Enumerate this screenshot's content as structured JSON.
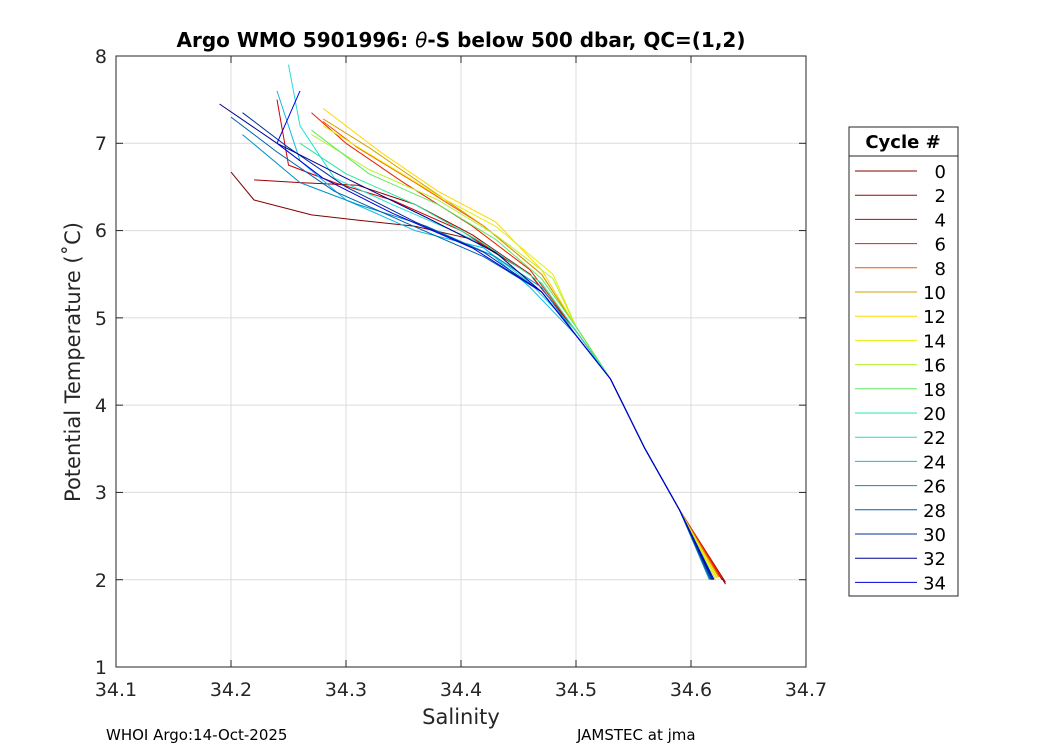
{
  "chart_data": {
    "type": "line",
    "title": {
      "prefix": "Argo WMO 5901996: ",
      "theta": "θ",
      "suffix": "-S below 500 dbar,  QC=(1,2)"
    },
    "xlabel": "Salinity",
    "ylabel": "Potential Temperature (˚C)",
    "xlim": [
      34.1,
      34.7
    ],
    "ylim": [
      1,
      8
    ],
    "xticks": [
      "34.1",
      "34.2",
      "34.3",
      "34.4",
      "34.5",
      "34.6",
      "34.7"
    ],
    "yticks": [
      "1",
      "2",
      "3",
      "4",
      "5",
      "6",
      "7",
      "8"
    ],
    "grid": true,
    "legend_title": "Cycle #",
    "legend_position": "outside-right",
    "legend_entries": [
      {
        "label": "0",
        "color": "#800000"
      },
      {
        "label": "2",
        "color": "#a00000"
      },
      {
        "label": "4",
        "color": "#cc0000"
      },
      {
        "label": "6",
        "color": "#e82000"
      },
      {
        "label": "8",
        "color": "#ff5000"
      },
      {
        "label": "10",
        "color": "#d4a000"
      },
      {
        "label": "12",
        "color": "#ffd800"
      },
      {
        "label": "14",
        "color": "#e8f000"
      },
      {
        "label": "16",
        "color": "#b8f030"
      },
      {
        "label": "18",
        "color": "#60e860"
      },
      {
        "label": "20",
        "color": "#28e8a0"
      },
      {
        "label": "22",
        "color": "#20e0d0"
      },
      {
        "label": "24",
        "color": "#10b8e8"
      },
      {
        "label": "26",
        "color": "#0090c8"
      },
      {
        "label": "28",
        "color": "#0060b0"
      },
      {
        "label": "30",
        "color": "#0030a0"
      },
      {
        "label": "32",
        "color": "#000090"
      },
      {
        "label": "34",
        "color": "#0000e0"
      }
    ],
    "series": [
      {
        "name": "0",
        "color": "#800000",
        "points": [
          [
            34.2,
            6.67
          ],
          [
            34.22,
            6.35
          ],
          [
            34.27,
            6.18
          ],
          [
            34.31,
            6.12
          ],
          [
            34.36,
            6.05
          ],
          [
            34.41,
            5.9
          ],
          [
            34.46,
            5.5
          ],
          [
            34.5,
            4.85
          ],
          [
            34.53,
            4.3
          ],
          [
            34.56,
            3.5
          ],
          [
            34.59,
            2.8
          ],
          [
            34.63,
            1.95
          ]
        ]
      },
      {
        "name": "2",
        "color": "#a00000",
        "points": [
          [
            34.22,
            6.58
          ],
          [
            34.26,
            6.55
          ],
          [
            34.31,
            6.52
          ],
          [
            34.36,
            6.3
          ],
          [
            34.41,
            5.95
          ],
          [
            34.46,
            5.5
          ],
          [
            34.5,
            4.85
          ],
          [
            34.53,
            4.3
          ],
          [
            34.56,
            3.5
          ],
          [
            34.59,
            2.8
          ],
          [
            34.63,
            1.97
          ]
        ]
      },
      {
        "name": "4",
        "color": "#cc0000",
        "points": [
          [
            34.24,
            7.5
          ],
          [
            34.25,
            6.75
          ],
          [
            34.29,
            6.55
          ],
          [
            34.34,
            6.35
          ],
          [
            34.4,
            6.0
          ],
          [
            34.46,
            5.5
          ],
          [
            34.5,
            4.85
          ],
          [
            34.53,
            4.3
          ],
          [
            34.56,
            3.5
          ],
          [
            34.59,
            2.8
          ],
          [
            34.627,
            2.0
          ]
        ]
      },
      {
        "name": "6",
        "color": "#e82000",
        "points": [
          [
            34.27,
            7.35
          ],
          [
            34.3,
            7.0
          ],
          [
            34.35,
            6.55
          ],
          [
            34.41,
            6.05
          ],
          [
            34.46,
            5.55
          ],
          [
            34.5,
            4.85
          ],
          [
            34.53,
            4.3
          ],
          [
            34.56,
            3.5
          ],
          [
            34.59,
            2.8
          ],
          [
            34.627,
            2.02
          ]
        ]
      },
      {
        "name": "8",
        "color": "#ff5000",
        "points": [
          [
            34.28,
            7.25
          ],
          [
            34.31,
            6.95
          ],
          [
            34.36,
            6.55
          ],
          [
            34.42,
            6.05
          ],
          [
            34.47,
            5.5
          ],
          [
            34.5,
            4.9
          ],
          [
            34.53,
            4.3
          ],
          [
            34.56,
            3.5
          ],
          [
            34.59,
            2.8
          ],
          [
            34.625,
            2.03
          ]
        ]
      },
      {
        "name": "10",
        "color": "#d4a000",
        "points": [
          [
            34.28,
            7.28
          ],
          [
            34.32,
            6.95
          ],
          [
            34.37,
            6.5
          ],
          [
            34.42,
            6.05
          ],
          [
            34.47,
            5.5
          ],
          [
            34.5,
            4.9
          ],
          [
            34.53,
            4.3
          ],
          [
            34.56,
            3.5
          ],
          [
            34.59,
            2.8
          ],
          [
            34.624,
            2.03
          ]
        ]
      },
      {
        "name": "12",
        "color": "#ffd800",
        "points": [
          [
            34.28,
            7.4
          ],
          [
            34.33,
            6.9
          ],
          [
            34.38,
            6.45
          ],
          [
            34.43,
            6.1
          ],
          [
            34.47,
            5.55
          ],
          [
            34.5,
            4.9
          ],
          [
            34.53,
            4.3
          ],
          [
            34.56,
            3.5
          ],
          [
            34.59,
            2.8
          ],
          [
            34.623,
            2.02
          ]
        ]
      },
      {
        "name": "14",
        "color": "#e8f000",
        "points": [
          [
            34.28,
            7.2
          ],
          [
            34.33,
            6.8
          ],
          [
            34.38,
            6.4
          ],
          [
            34.43,
            6.05
          ],
          [
            34.48,
            5.5
          ],
          [
            34.5,
            4.9
          ],
          [
            34.53,
            4.3
          ],
          [
            34.56,
            3.5
          ],
          [
            34.59,
            2.8
          ],
          [
            34.622,
            2.02
          ]
        ]
      },
      {
        "name": "16",
        "color": "#b8f030",
        "points": [
          [
            34.27,
            7.1
          ],
          [
            34.32,
            6.7
          ],
          [
            34.38,
            6.35
          ],
          [
            34.43,
            5.95
          ],
          [
            34.48,
            5.45
          ],
          [
            34.5,
            4.9
          ],
          [
            34.53,
            4.3
          ],
          [
            34.56,
            3.5
          ],
          [
            34.59,
            2.8
          ],
          [
            34.621,
            2.01
          ]
        ]
      },
      {
        "name": "18",
        "color": "#60e860",
        "points": [
          [
            34.27,
            7.15
          ],
          [
            34.32,
            6.65
          ],
          [
            34.38,
            6.3
          ],
          [
            34.43,
            5.9
          ],
          [
            34.47,
            5.45
          ],
          [
            34.5,
            4.9
          ],
          [
            34.53,
            4.3
          ],
          [
            34.56,
            3.5
          ],
          [
            34.59,
            2.8
          ],
          [
            34.62,
            2.0
          ]
        ]
      },
      {
        "name": "20",
        "color": "#28e8a0",
        "points": [
          [
            34.26,
            7.0
          ],
          [
            34.3,
            6.65
          ],
          [
            34.36,
            6.3
          ],
          [
            34.42,
            5.85
          ],
          [
            34.47,
            5.4
          ],
          [
            34.5,
            4.85
          ],
          [
            34.53,
            4.3
          ],
          [
            34.56,
            3.5
          ],
          [
            34.59,
            2.8
          ],
          [
            34.62,
            2.0
          ]
        ]
      },
      {
        "name": "22",
        "color": "#20e0d0",
        "points": [
          [
            34.25,
            7.9
          ],
          [
            34.26,
            7.2
          ],
          [
            34.29,
            6.6
          ],
          [
            34.34,
            6.3
          ],
          [
            34.41,
            5.9
          ],
          [
            34.46,
            5.4
          ],
          [
            34.5,
            4.85
          ],
          [
            34.53,
            4.3
          ],
          [
            34.56,
            3.5
          ],
          [
            34.59,
            2.8
          ],
          [
            34.618,
            2.0
          ]
        ]
      },
      {
        "name": "24",
        "color": "#10b8e8",
        "points": [
          [
            34.24,
            7.6
          ],
          [
            34.26,
            6.8
          ],
          [
            34.3,
            6.35
          ],
          [
            34.36,
            6.0
          ],
          [
            34.42,
            5.8
          ],
          [
            34.46,
            5.35
          ],
          [
            34.5,
            4.8
          ],
          [
            34.53,
            4.3
          ],
          [
            34.56,
            3.5
          ],
          [
            34.59,
            2.8
          ],
          [
            34.617,
            2.0
          ]
        ]
      },
      {
        "name": "26",
        "color": "#0090c8",
        "points": [
          [
            34.21,
            7.1
          ],
          [
            34.26,
            6.55
          ],
          [
            34.31,
            6.3
          ],
          [
            34.37,
            6.05
          ],
          [
            34.43,
            5.7
          ],
          [
            34.47,
            5.35
          ],
          [
            34.5,
            4.8
          ],
          [
            34.53,
            4.3
          ],
          [
            34.56,
            3.5
          ],
          [
            34.59,
            2.8
          ],
          [
            34.616,
            2.0
          ]
        ]
      },
      {
        "name": "28",
        "color": "#0060b0",
        "points": [
          [
            34.2,
            7.3
          ],
          [
            34.24,
            6.9
          ],
          [
            34.29,
            6.45
          ],
          [
            34.35,
            6.1
          ],
          [
            34.42,
            5.7
          ],
          [
            34.47,
            5.3
          ],
          [
            34.5,
            4.8
          ],
          [
            34.53,
            4.3
          ],
          [
            34.56,
            3.5
          ],
          [
            34.59,
            2.8
          ],
          [
            34.617,
            2.0
          ]
        ]
      },
      {
        "name": "30",
        "color": "#0030a0",
        "points": [
          [
            34.21,
            7.35
          ],
          [
            34.25,
            6.95
          ],
          [
            34.3,
            6.5
          ],
          [
            34.36,
            6.1
          ],
          [
            34.42,
            5.75
          ],
          [
            34.47,
            5.3
          ],
          [
            34.5,
            4.8
          ],
          [
            34.53,
            4.3
          ],
          [
            34.56,
            3.5
          ],
          [
            34.59,
            2.8
          ],
          [
            34.618,
            2.0
          ]
        ]
      },
      {
        "name": "32",
        "color": "#000090",
        "points": [
          [
            34.19,
            7.45
          ],
          [
            34.24,
            7.0
          ],
          [
            34.3,
            6.6
          ],
          [
            34.37,
            6.15
          ],
          [
            34.43,
            5.75
          ],
          [
            34.47,
            5.3
          ],
          [
            34.5,
            4.8
          ],
          [
            34.53,
            4.3
          ],
          [
            34.56,
            3.5
          ],
          [
            34.59,
            2.8
          ],
          [
            34.619,
            2.0
          ]
        ]
      },
      {
        "name": "34",
        "color": "#0000e0",
        "points": [
          [
            34.26,
            7.6
          ],
          [
            34.24,
            7.0
          ],
          [
            34.28,
            6.6
          ],
          [
            34.34,
            6.2
          ],
          [
            34.41,
            5.8
          ],
          [
            34.47,
            5.3
          ],
          [
            34.5,
            4.8
          ],
          [
            34.53,
            4.3
          ],
          [
            34.56,
            3.5
          ],
          [
            34.59,
            2.8
          ],
          [
            34.62,
            2.0
          ]
        ]
      }
    ]
  },
  "footer": {
    "left": "WHOI Argo:14-Oct-2025",
    "right": "JAMSTEC at jma"
  }
}
